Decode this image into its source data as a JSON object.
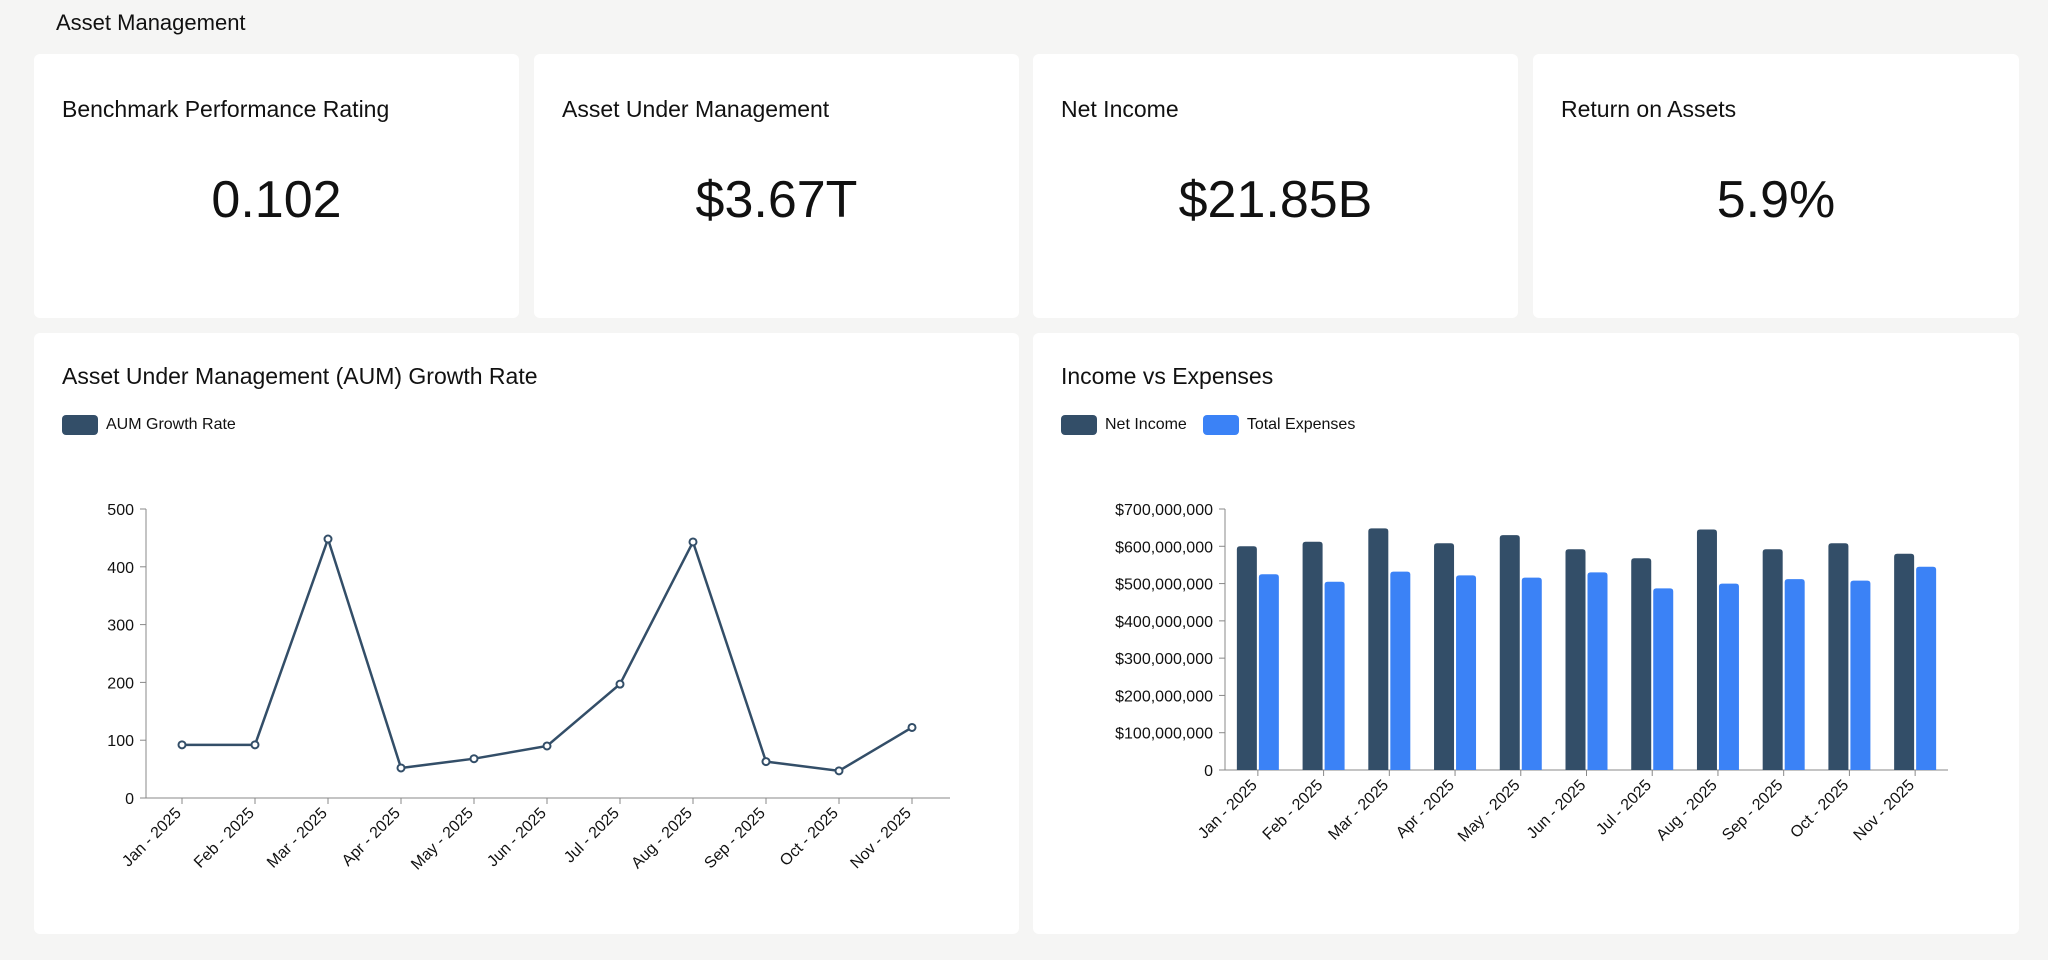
{
  "page": {
    "title": "Asset Management"
  },
  "kpis": [
    {
      "title": "Benchmark Performance Rating",
      "value": "0.102"
    },
    {
      "title": "Asset Under Management",
      "value": "$3.67T"
    },
    {
      "title": "Net Income",
      "value": "$21.85B"
    },
    {
      "title": "Return on Assets",
      "value": "5.9%"
    }
  ],
  "colors": {
    "dark": "#334e68",
    "blue": "#3b82f6",
    "axis": "#888888"
  },
  "charts": {
    "aum": {
      "legend": [
        "AUM Growth Rate"
      ]
    },
    "income": {
      "legend": [
        "Net Income",
        "Total Expenses"
      ]
    }
  },
  "chart_data": [
    {
      "type": "line",
      "title": "Asset Under Management (AUM) Growth Rate",
      "categories": [
        "Jan - 2025",
        "Feb - 2025",
        "Mar - 2025",
        "Apr - 2025",
        "May - 2025",
        "Jun - 2025",
        "Jul - 2025",
        "Aug - 2025",
        "Sep - 2025",
        "Oct - 2025",
        "Nov - 2025"
      ],
      "series": [
        {
          "name": "AUM Growth Rate",
          "values": [
            92,
            92,
            448,
            52,
            68,
            90,
            197,
            443,
            63,
            47,
            122
          ]
        }
      ],
      "ylim": [
        0,
        500
      ],
      "yticks": [
        0,
        100,
        200,
        300,
        400,
        500
      ],
      "ytick_labels": [
        "0",
        "100",
        "200",
        "300",
        "400",
        "500"
      ],
      "grid": false,
      "legend": "top-left"
    },
    {
      "type": "bar",
      "title": "Income vs Expenses",
      "categories": [
        "Jan - 2025",
        "Feb - 2025",
        "Mar - 2025",
        "Apr - 2025",
        "May - 2025",
        "Jun - 2025",
        "Jul - 2025",
        "Aug - 2025",
        "Sep - 2025",
        "Oct - 2025",
        "Nov - 2025"
      ],
      "series": [
        {
          "name": "Net Income",
          "values": [
            600000000,
            612000000,
            648000000,
            608000000,
            630000000,
            592000000,
            568000000,
            645000000,
            592000000,
            608000000,
            580000000
          ]
        },
        {
          "name": "Total Expenses",
          "values": [
            525000000,
            505000000,
            532000000,
            522000000,
            516000000,
            530000000,
            487000000,
            500000000,
            512000000,
            508000000,
            545000000
          ]
        }
      ],
      "ylim": [
        0,
        700000000
      ],
      "yticks": [
        0,
        100000000,
        200000000,
        300000000,
        400000000,
        500000000,
        600000000,
        700000000
      ],
      "ytick_labels": [
        "0",
        "$100,000,000",
        "$200,000,000",
        "$300,000,000",
        "$400,000,000",
        "$500,000,000",
        "$600,000,000",
        "$700,000,000"
      ],
      "grid": false,
      "legend": "top-left"
    }
  ]
}
